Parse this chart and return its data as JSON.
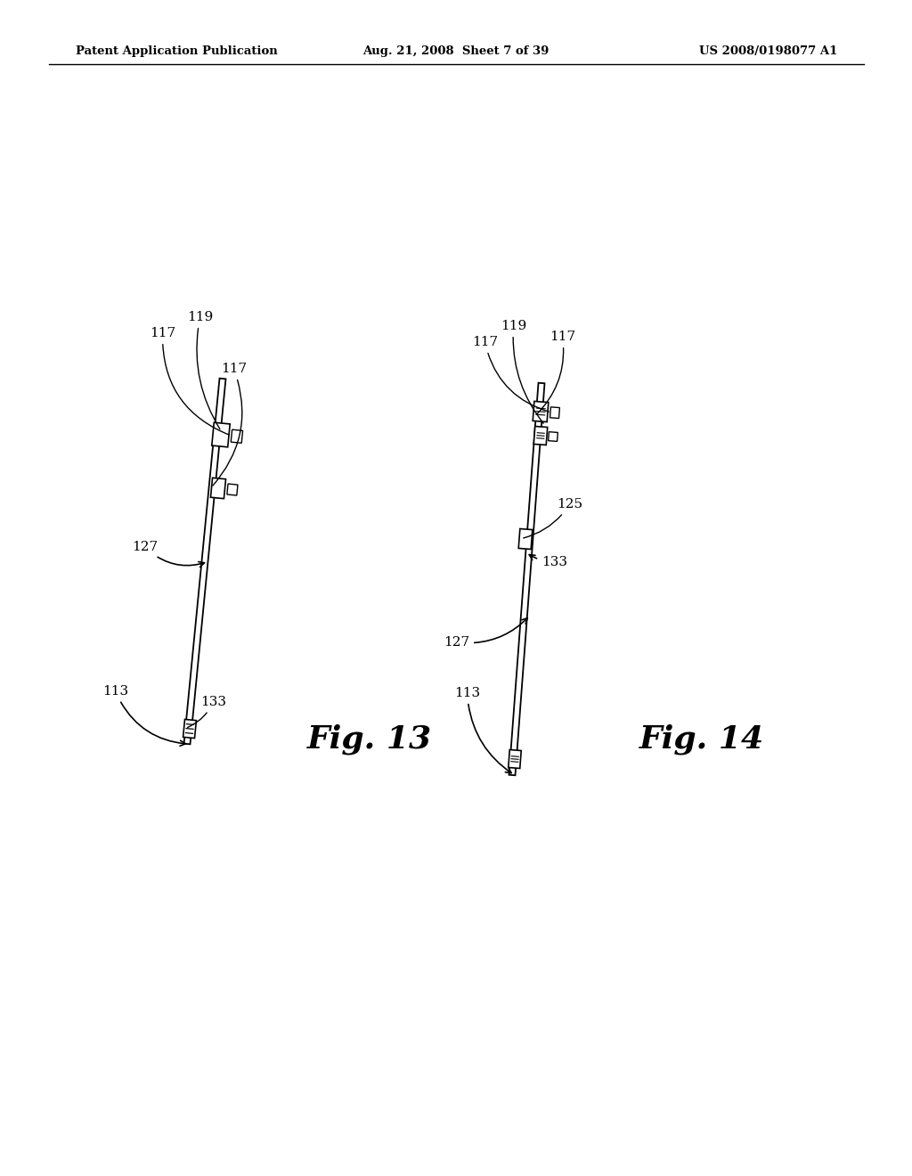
{
  "background_color": "#ffffff",
  "header_left": "Patent Application Publication",
  "header_center": "Aug. 21, 2008  Sheet 7 of 39",
  "header_right": "US 2008/0198077 A1",
  "fig13_label": "Fig. 13",
  "fig14_label": "Fig. 14"
}
